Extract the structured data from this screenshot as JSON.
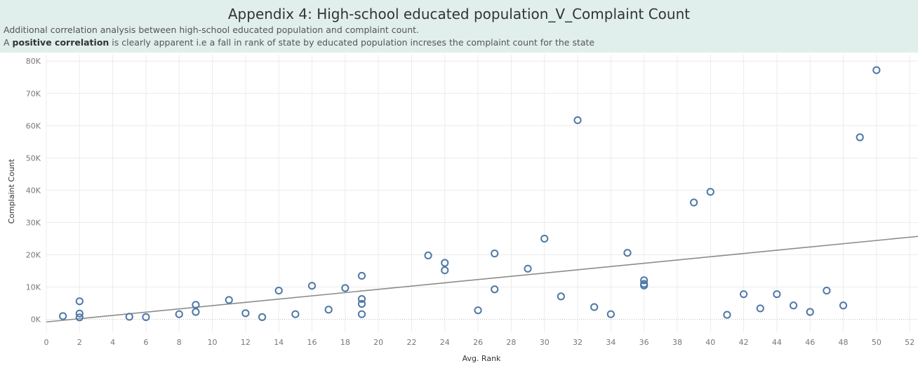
{
  "header": {
    "title": "Appendix 4: High-school educated population_V_Complaint Count",
    "subtitle_line1": "Additional correlation analysis between high-school educated population and complaint count.",
    "subtitle_line2_prefix": "A ",
    "subtitle_line2_bold": "positive correlation",
    "subtitle_line2_suffix": " is clearly apparent i.e a fall  in rank of state by educated population increses the complaint count for the state"
  },
  "colors": {
    "header_bg": "#e0efeb",
    "marker": "#4e79a7",
    "trend_line": "#8c8c8c",
    "grid": "#ececec"
  },
  "chart_data": {
    "type": "scatter",
    "xlabel": "Avg. Rank",
    "ylabel": "Complaint Count",
    "xlim": [
      0,
      52.5
    ],
    "ylim": [
      -4000,
      82000
    ],
    "x_ticks": [
      0,
      2,
      4,
      6,
      8,
      10,
      12,
      14,
      16,
      18,
      20,
      22,
      24,
      26,
      28,
      30,
      32,
      34,
      36,
      38,
      40,
      42,
      44,
      46,
      48,
      50,
      52
    ],
    "y_ticks": [
      0,
      10000,
      20000,
      30000,
      40000,
      50000,
      60000,
      70000,
      80000
    ],
    "y_tick_labels": [
      "0K",
      "10K",
      "20K",
      "30K",
      "40K",
      "50K",
      "60K",
      "70K",
      "80K"
    ],
    "grid": true,
    "marker": "hollow circle",
    "trend_line": {
      "x": [
        0,
        52.5
      ],
      "y": [
        -800,
        25700
      ]
    },
    "points": [
      {
        "x": 1,
        "y": 1000
      },
      {
        "x": 2,
        "y": 5600
      },
      {
        "x": 2,
        "y": 1800
      },
      {
        "x": 2,
        "y": 600
      },
      {
        "x": 5,
        "y": 800
      },
      {
        "x": 6,
        "y": 700
      },
      {
        "x": 8,
        "y": 1600
      },
      {
        "x": 9,
        "y": 4500
      },
      {
        "x": 9,
        "y": 2300
      },
      {
        "x": 11,
        "y": 6000
      },
      {
        "x": 12,
        "y": 1900
      },
      {
        "x": 13,
        "y": 700
      },
      {
        "x": 14,
        "y": 8900
      },
      {
        "x": 15,
        "y": 1600
      },
      {
        "x": 16,
        "y": 10400
      },
      {
        "x": 17,
        "y": 3000
      },
      {
        "x": 18,
        "y": 9700
      },
      {
        "x": 19,
        "y": 13500
      },
      {
        "x": 19,
        "y": 6300
      },
      {
        "x": 19,
        "y": 4800
      },
      {
        "x": 19,
        "y": 1600
      },
      {
        "x": 23,
        "y": 19800
      },
      {
        "x": 24,
        "y": 17500
      },
      {
        "x": 24,
        "y": 15200
      },
      {
        "x": 26,
        "y": 2800
      },
      {
        "x": 27,
        "y": 20400
      },
      {
        "x": 27,
        "y": 9300
      },
      {
        "x": 29,
        "y": 15700
      },
      {
        "x": 30,
        "y": 25000
      },
      {
        "x": 31,
        "y": 7100
      },
      {
        "x": 32,
        "y": 61700
      },
      {
        "x": 33,
        "y": 3800
      },
      {
        "x": 34,
        "y": 1600
      },
      {
        "x": 35,
        "y": 20600
      },
      {
        "x": 36,
        "y": 12100
      },
      {
        "x": 36,
        "y": 11000
      },
      {
        "x": 36,
        "y": 10500
      },
      {
        "x": 39,
        "y": 36200
      },
      {
        "x": 40,
        "y": 39500
      },
      {
        "x": 41,
        "y": 1400
      },
      {
        "x": 42,
        "y": 7800
      },
      {
        "x": 43,
        "y": 3400
      },
      {
        "x": 44,
        "y": 7800
      },
      {
        "x": 45,
        "y": 4300
      },
      {
        "x": 46,
        "y": 2300
      },
      {
        "x": 47,
        "y": 8900
      },
      {
        "x": 48,
        "y": 4300
      },
      {
        "x": 49,
        "y": 56400
      },
      {
        "x": 50,
        "y": 77200
      }
    ]
  }
}
